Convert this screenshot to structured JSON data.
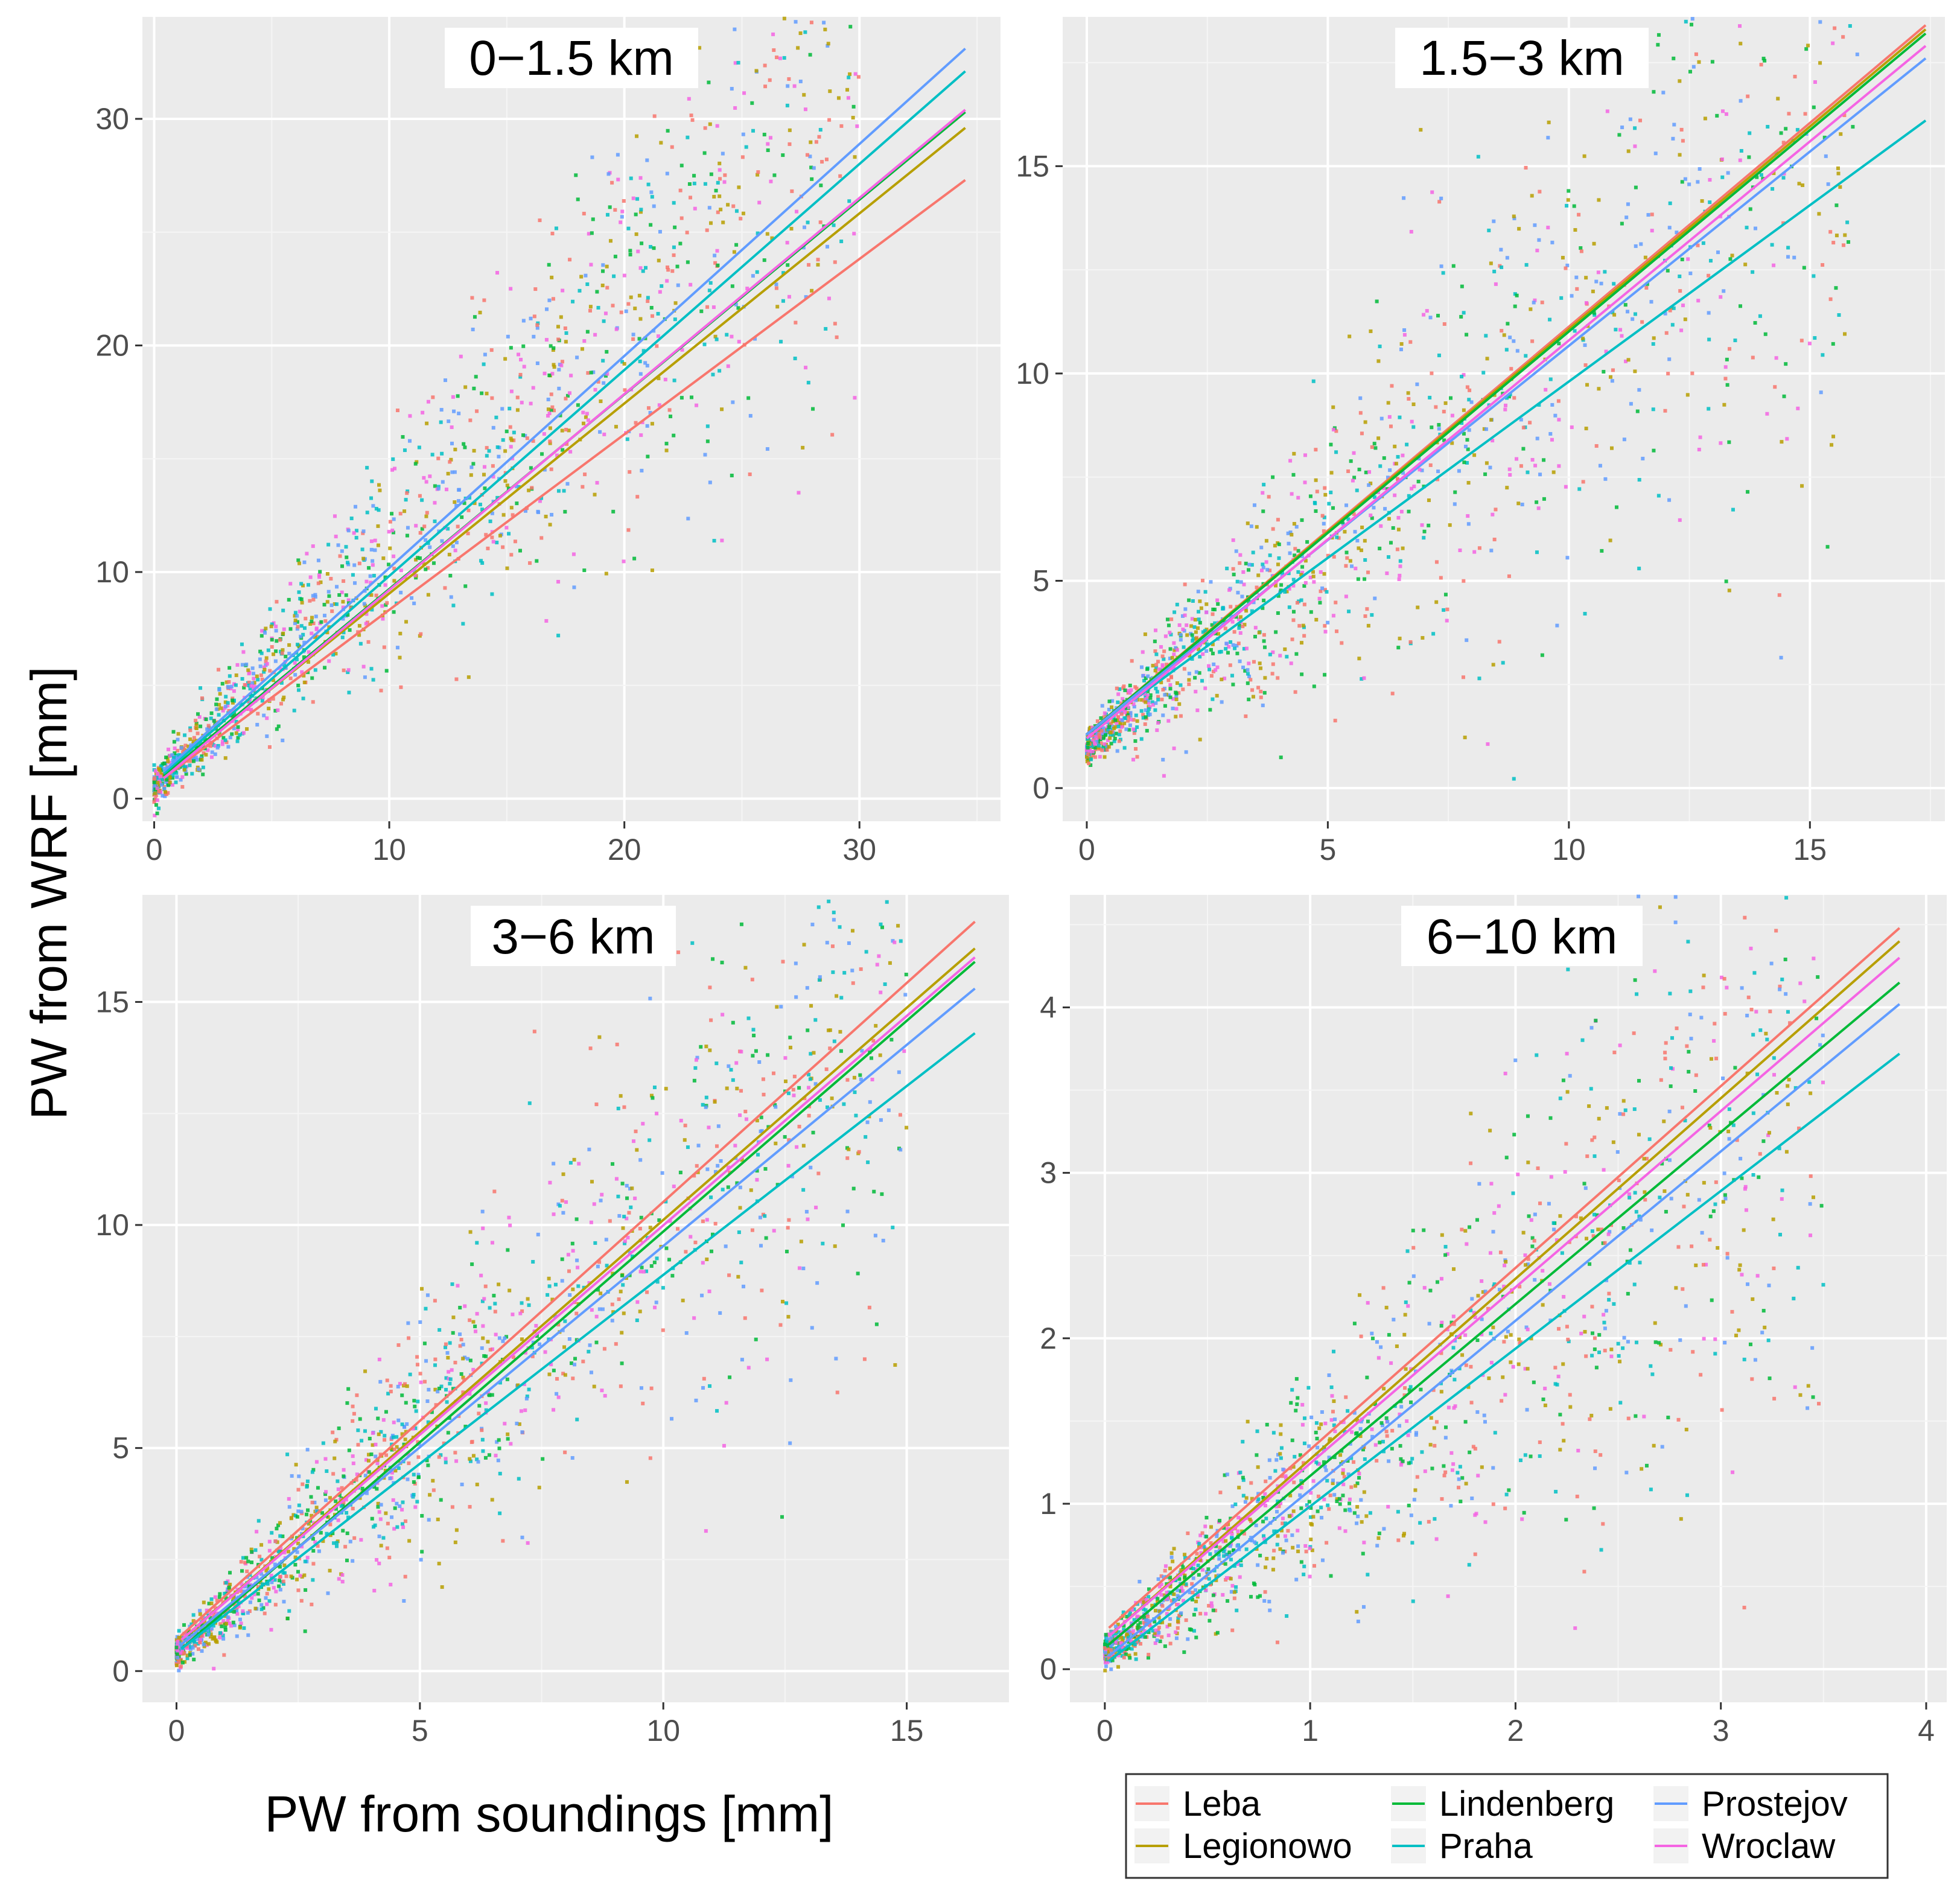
{
  "figure": {
    "ylabel": "PW from WRF [mm]",
    "xlabel": "PW from soundings [mm]"
  },
  "stations": [
    {
      "name": "Leba",
      "color": "#f8766d"
    },
    {
      "name": "Legionowo",
      "color": "#b79f00"
    },
    {
      "name": "Lindenberg",
      "color": "#00ba38"
    },
    {
      "name": "Praha",
      "color": "#00bfc4"
    },
    {
      "name": "Prostejov",
      "color": "#619cff"
    },
    {
      "name": "Wroclaw",
      "color": "#f564e3"
    }
  ],
  "chart_data": [
    {
      "type": "scatter",
      "title": "0−1.5 km",
      "xlim": [
        -0.5,
        36
      ],
      "ylim": [
        -1,
        34.5
      ],
      "xticks": [
        0,
        10,
        20,
        30
      ],
      "xtick_labels": [
        "0",
        "10",
        "20",
        "30"
      ],
      "yticks": [
        0,
        10,
        20,
        30
      ],
      "ytick_labels": [
        "0",
        "10",
        "20",
        "30"
      ],
      "series": [
        {
          "name": "Leba",
          "x": [
            0.4,
            34.5
          ],
          "y": [
            0.9,
            27.3
          ]
        },
        {
          "name": "Legionowo",
          "x": [
            0.4,
            34.5
          ],
          "y": [
            1.0,
            29.6
          ]
        },
        {
          "name": "Lindenberg",
          "x": [
            0.4,
            34.5
          ],
          "y": [
            1.0,
            30.3
          ]
        },
        {
          "name": "Praha",
          "x": [
            0.4,
            34.5
          ],
          "y": [
            1.1,
            32.1
          ]
        },
        {
          "name": "Prostejov",
          "x": [
            0.4,
            34.5
          ],
          "y": [
            1.2,
            33.1
          ]
        },
        {
          "name": "Wroclaw",
          "x": [
            0.4,
            34.5
          ],
          "y": [
            0.9,
            30.4
          ]
        }
      ],
      "cloud": {
        "xmax": 30,
        "slope": 1.02,
        "intercept": 0.5,
        "spread": 0.2
      }
    },
    {
      "type": "scatter",
      "title": "1.5−3 km",
      "xlim": [
        -0.5,
        17.8
      ],
      "ylim": [
        -0.8,
        18.6
      ],
      "xticks": [
        0,
        5,
        10,
        15
      ],
      "xtick_labels": [
        "0",
        "5",
        "10",
        "15"
      ],
      "yticks": [
        0,
        5,
        10,
        15
      ],
      "ytick_labels": [
        "0",
        "5",
        "10",
        "15"
      ],
      "series": [
        {
          "name": "Leba",
          "x": [
            0,
            17.4
          ],
          "y": [
            1.3,
            18.4
          ]
        },
        {
          "name": "Legionowo",
          "x": [
            0,
            17.4
          ],
          "y": [
            1.3,
            18.3
          ]
        },
        {
          "name": "Lindenberg",
          "x": [
            0,
            17.4
          ],
          "y": [
            1.3,
            18.2
          ]
        },
        {
          "name": "Praha",
          "x": [
            0,
            17.4
          ],
          "y": [
            1.3,
            16.1
          ]
        },
        {
          "name": "Prostejov",
          "x": [
            0,
            17.4
          ],
          "y": [
            1.3,
            17.6
          ]
        },
        {
          "name": "Wroclaw",
          "x": [
            0,
            17.4
          ],
          "y": [
            1.2,
            17.9
          ]
        }
      ],
      "cloud": {
        "xmax": 16,
        "slope": 0.98,
        "intercept": 1.0,
        "spread": 0.3
      }
    },
    {
      "type": "scatter",
      "title": "3−6 km",
      "xlim": [
        -0.7,
        17.1
      ],
      "ylim": [
        -0.7,
        17.4
      ],
      "xticks": [
        0,
        5,
        10,
        15
      ],
      "xtick_labels": [
        "0",
        "5",
        "10",
        "15"
      ],
      "yticks": [
        0,
        5,
        10,
        15
      ],
      "ytick_labels": [
        "0",
        "5",
        "10",
        "15"
      ],
      "series": [
        {
          "name": "Leba",
          "x": [
            0.1,
            16.4
          ],
          "y": [
            0.8,
            16.8
          ]
        },
        {
          "name": "Legionowo",
          "x": [
            0.1,
            16.4
          ],
          "y": [
            0.7,
            16.2
          ]
        },
        {
          "name": "Lindenberg",
          "x": [
            0.1,
            16.4
          ],
          "y": [
            0.5,
            15.9
          ]
        },
        {
          "name": "Praha",
          "x": [
            0.1,
            16.4
          ],
          "y": [
            0.5,
            14.3
          ]
        },
        {
          "name": "Prostejov",
          "x": [
            0.1,
            16.4
          ],
          "y": [
            0.6,
            15.3
          ]
        },
        {
          "name": "Wroclaw",
          "x": [
            0.1,
            16.4
          ],
          "y": [
            0.7,
            16.0
          ]
        }
      ],
      "cloud": {
        "xmax": 15,
        "slope": 0.97,
        "intercept": 0.4,
        "spread": 0.22
      }
    },
    {
      "type": "scatter",
      "title": "6−10 km",
      "xlim": [
        -0.17,
        4.1
      ],
      "ylim": [
        -0.2,
        4.68
      ],
      "xticks": [
        0,
        1,
        2,
        3,
        4
      ],
      "xtick_labels": [
        "0",
        "1",
        "2",
        "3",
        "4"
      ],
      "yticks": [
        0,
        1,
        2,
        3,
        4
      ],
      "ytick_labels": [
        "0",
        "1",
        "2",
        "3",
        "4"
      ],
      "series": [
        {
          "name": "Leba",
          "x": [
            0.02,
            3.87
          ],
          "y": [
            0.25,
            4.48
          ]
        },
        {
          "name": "Legionowo",
          "x": [
            0.02,
            3.87
          ],
          "y": [
            0.2,
            4.4
          ]
        },
        {
          "name": "Lindenberg",
          "x": [
            0.02,
            3.87
          ],
          "y": [
            0.15,
            4.15
          ]
        },
        {
          "name": "Praha",
          "x": [
            0.02,
            3.87
          ],
          "y": [
            0.05,
            3.72
          ]
        },
        {
          "name": "Prostejov",
          "x": [
            0.02,
            3.87
          ],
          "y": [
            0.08,
            4.02
          ]
        },
        {
          "name": "Wroclaw",
          "x": [
            0.02,
            3.87
          ],
          "y": [
            0.2,
            4.3
          ]
        }
      ],
      "cloud": {
        "xmax": 3.5,
        "slope": 1.0,
        "intercept": 0.1,
        "spread": 0.3
      }
    }
  ]
}
